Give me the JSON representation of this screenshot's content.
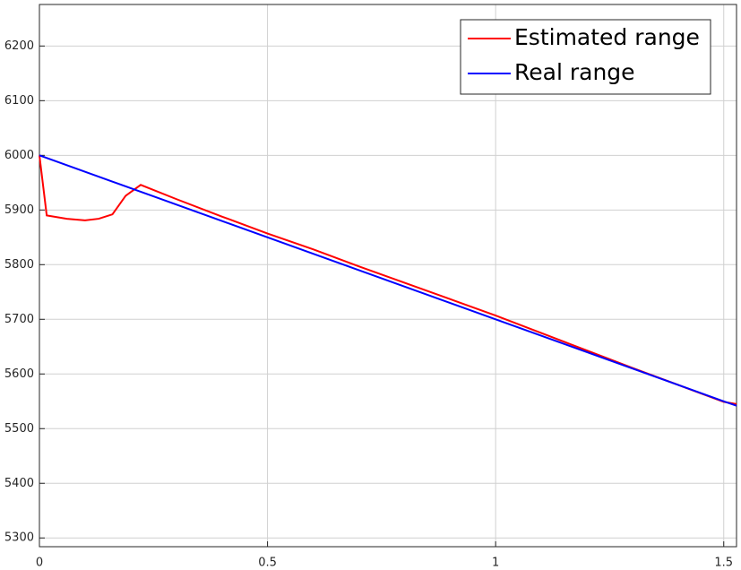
{
  "chart_data": {
    "type": "line",
    "series": [
      {
        "name": "Estimated range",
        "color": "#ff0000",
        "x": [
          0,
          0.016,
          0.06,
          0.1,
          0.13,
          0.16,
          0.189,
          0.222,
          0.3,
          0.4,
          0.5,
          0.6,
          0.7,
          0.8,
          0.9,
          1,
          1.1,
          1.2,
          1.3,
          1.4,
          1.5,
          1.528
        ],
        "values": [
          6000,
          5890,
          5884,
          5881,
          5884,
          5892,
          5926,
          5946,
          5920,
          5888,
          5857,
          5828,
          5797,
          5767,
          5737,
          5707,
          5675,
          5643,
          5611,
          5580,
          5549,
          5545
        ]
      },
      {
        "name": "Real range",
        "color": "#0000ff",
        "x": [
          0,
          0.25,
          0.5,
          0.75,
          1,
          1.25,
          1.5,
          1.528
        ],
        "values": [
          6000,
          5925,
          5850,
          5775,
          5700,
          5625,
          5550,
          5542
        ]
      }
    ],
    "xlim": [
      0,
      1.528
    ],
    "xticks": [
      0,
      0.5,
      1,
      1.5
    ],
    "ylim": [
      5284,
      6276
    ],
    "yticks": [
      5300,
      5400,
      5500,
      5600,
      5700,
      5800,
      5900,
      6000,
      6100,
      6200
    ],
    "grid": true,
    "legend": "upper right"
  }
}
